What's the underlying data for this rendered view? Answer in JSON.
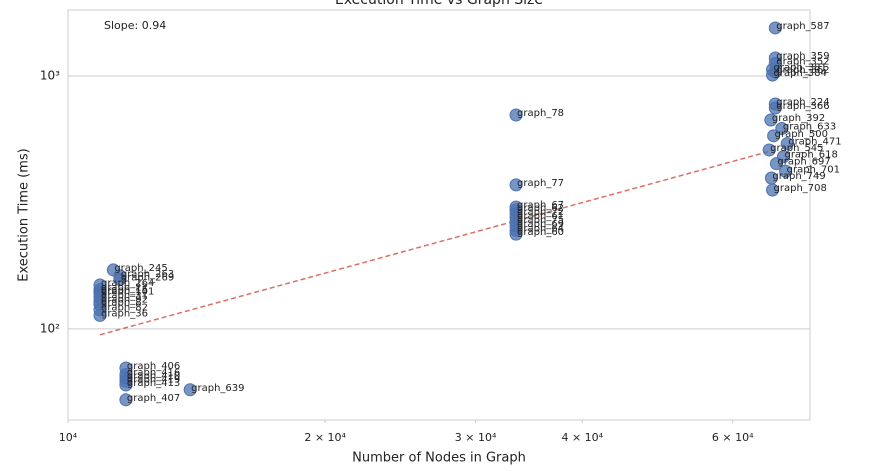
{
  "chart_data": {
    "type": "scatter",
    "title": "Execution Time vs Graph Size",
    "x_label": "Number of Nodes in Graph",
    "y_label": "Execution Time (ms)",
    "annotation": "Slope: 0.94",
    "log_x": true,
    "log_y": true,
    "grid": true,
    "xlim": [
      10000,
      73900
    ],
    "ylim": [
      43.6,
      1824
    ],
    "xticks": [
      {
        "value": 10000,
        "label": "10⁴"
      },
      {
        "value": 20000,
        "label": "2 × 10⁴"
      },
      {
        "value": 30000,
        "label": "3 × 10⁴"
      },
      {
        "value": 40000,
        "label": "4 × 10⁴"
      },
      {
        "value": 60000,
        "label": "6 × 10⁴"
      }
    ],
    "yticks": [
      {
        "value": 100,
        "label": "10²"
      },
      {
        "value": 1000,
        "label": "10³"
      }
    ],
    "series": [
      {
        "color": "#4c72b0",
        "x": [
          10900,
          10900,
          10900,
          10900,
          10900,
          10900,
          10900,
          10900,
          10900,
          11300,
          11500,
          11500,
          11690,
          11690,
          11690,
          11690,
          11690,
          11690,
          13900,
          33460,
          33460,
          33460,
          33460,
          33460,
          33460,
          33460,
          33460,
          33460,
          33460,
          67300,
          67300,
          67300,
          66800,
          67300,
          66800,
          67300,
          67300,
          66500,
          68500,
          67000,
          69500,
          66200,
          68800,
          67500,
          69200,
          66600,
          66800
        ],
        "y": [
          149,
          143,
          140,
          138,
          133,
          128,
          125,
          119,
          113,
          171,
          162,
          157,
          70,
          66,
          64,
          62,
          60,
          52.4,
          57.4,
          701,
          371,
          303,
          295,
          285,
          275,
          265,
          255,
          245,
          237,
          1549,
          1178,
          1120,
          1060,
          1037,
          1009,
          775,
          747,
          670,
          620,
          580,
          540,
          510,
          480,
          450,
          420,
          395,
          354
        ],
        "labels": [
          "graph_264",
          "graph_22",
          "graph_15",
          "graph_101",
          "graph_31",
          "graph_92",
          "graph_8",
          "graph_82",
          "graph_36",
          "graph_245",
          "graph_263",
          "graph_269",
          "graph_406",
          "graph_416",
          "graph_410",
          "graph_419",
          "graph_413",
          "graph_407",
          "graph_639",
          "graph_78",
          "graph_77",
          "graph_67",
          "graph_62",
          "graph_72",
          "graph_61",
          "graph_75",
          "graph_69",
          "graph_64",
          "graph_60",
          "graph_587",
          "graph_359",
          "graph_352",
          "graph_381",
          "graph_362",
          "graph_384",
          "graph_224",
          "graph_366",
          "graph_392",
          "graph_633",
          "graph_500",
          "graph_471",
          "graph_545",
          "graph_618",
          "graph_697",
          "graph_701",
          "graph_749",
          "graph_708"
        ]
      }
    ],
    "trend_line": {
      "color": "#d9706a",
      "x": [
        10900,
        67300
      ],
      "y": [
        94.7,
        511
      ]
    }
  }
}
